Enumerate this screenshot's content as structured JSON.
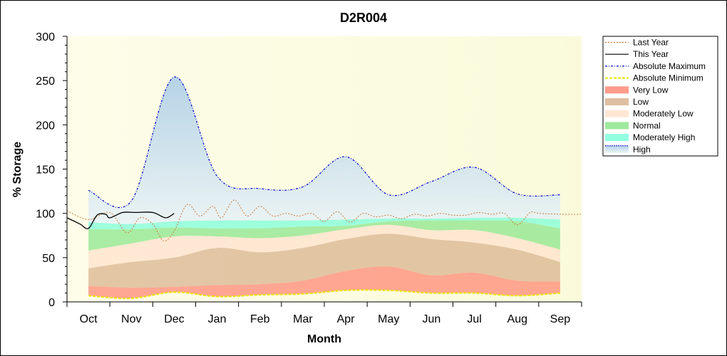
{
  "chart_data": {
    "type": "area",
    "title": "D2R004",
    "xlabel": "Month",
    "ylabel": "% Storage",
    "ylim": [
      0,
      300
    ],
    "yticks": [
      0,
      50,
      100,
      150,
      200,
      250,
      300
    ],
    "x_domain": [
      0,
      12
    ],
    "months": [
      "Oct",
      "Nov",
      "Dec",
      "Jan",
      "Feb",
      "Mar",
      "Apr",
      "May",
      "Jun",
      "Jul",
      "Aug",
      "Sep"
    ],
    "legend_position": "right",
    "colors": {
      "plot_bg_left": "#fdfde9",
      "plot_bg_right": "#fafadb",
      "very_low": "#ff8a75",
      "low": "#d9b48f",
      "moderately_low": "#ffe2cc",
      "normal": "#8ce68c",
      "moderately_high": "#7dffd9",
      "high": "#bcd9ec",
      "last_year": "#c87a3a",
      "this_year": "#000000",
      "abs_max": "#0000cc",
      "abs_min": "#e6e600"
    },
    "legend": [
      {
        "label": "Last Year",
        "kind": "line",
        "key": "last_year",
        "dash": "2,2"
      },
      {
        "label": "This Year",
        "kind": "line",
        "key": "this_year",
        "dash": ""
      },
      {
        "label": "Absolute Maximum",
        "kind": "line",
        "key": "abs_max",
        "dash": "3,2,1,2"
      },
      {
        "label": "Absolute Minimum",
        "kind": "line",
        "key": "abs_min",
        "dash": "4,2"
      },
      {
        "label": "Very Low",
        "kind": "fill",
        "key": "very_low"
      },
      {
        "label": "Low",
        "kind": "fill",
        "key": "low"
      },
      {
        "label": "Moderately Low",
        "kind": "fill",
        "key": "moderately_low"
      },
      {
        "label": "Normal",
        "kind": "fill",
        "key": "normal"
      },
      {
        "label": "Moderately High",
        "kind": "fill",
        "key": "moderately_high"
      },
      {
        "label": "High",
        "kind": "fill",
        "key": "high"
      }
    ],
    "band_x": [
      0.5,
      1.5,
      2.5,
      3.5,
      4.5,
      5.5,
      6.5,
      7.5,
      8.5,
      9.5,
      10.5,
      11.5
    ],
    "bands": {
      "abs_min": [
        7,
        4,
        11,
        6,
        8,
        9,
        13,
        13,
        10,
        10,
        7,
        10
      ],
      "very_low_top": [
        18,
        16,
        17,
        19,
        20,
        24,
        35,
        40,
        30,
        33,
        24,
        23
      ],
      "low_top": [
        38,
        45,
        50,
        61,
        56,
        61,
        71,
        77,
        71,
        67,
        59,
        45
      ],
      "moderately_low_top": [
        58,
        66,
        74,
        74,
        72,
        75,
        82,
        87,
        81,
        81,
        72,
        59
      ],
      "normal_top": [
        82,
        82,
        84,
        83,
        83,
        85,
        86,
        91,
        92,
        92,
        91,
        83
      ],
      "moderately_high_top": [
        90,
        88,
        91,
        92,
        92,
        92,
        93,
        94,
        94,
        95,
        95,
        93
      ],
      "high_top": [
        126,
        114,
        254,
        142,
        128,
        130,
        164,
        121,
        136,
        152,
        122,
        121
      ]
    },
    "last_year": {
      "x": [
        0.0,
        0.5,
        1.0,
        1.4,
        1.7,
        2.0,
        2.25,
        2.5,
        2.8,
        3.1,
        3.4,
        3.6,
        3.9,
        4.2,
        4.5,
        4.8,
        5.1,
        5.4,
        5.7,
        6.0,
        6.3,
        6.6,
        6.9,
        7.2,
        7.5,
        7.8,
        8.1,
        8.4,
        8.7,
        9.0,
        9.3,
        9.6,
        9.9,
        10.2,
        10.5,
        10.8,
        11.0,
        11.5,
        12.0
      ],
      "y": [
        103,
        93,
        101,
        78,
        95,
        88,
        69,
        80,
        110,
        97,
        108,
        95,
        115,
        97,
        108,
        97,
        100,
        97,
        100,
        91,
        102,
        90,
        100,
        96,
        98,
        94,
        99,
        97,
        100,
        98,
        98,
        101,
        99,
        100,
        87,
        101,
        100,
        99,
        99
      ]
    },
    "this_year": {
      "x": [
        0.0,
        0.3,
        0.5,
        0.7,
        0.9,
        1.0,
        1.3,
        1.6,
        2.0,
        2.3,
        2.5
      ],
      "y": [
        95,
        88,
        83,
        98,
        99,
        95,
        101,
        101,
        101,
        95,
        100
      ]
    }
  }
}
